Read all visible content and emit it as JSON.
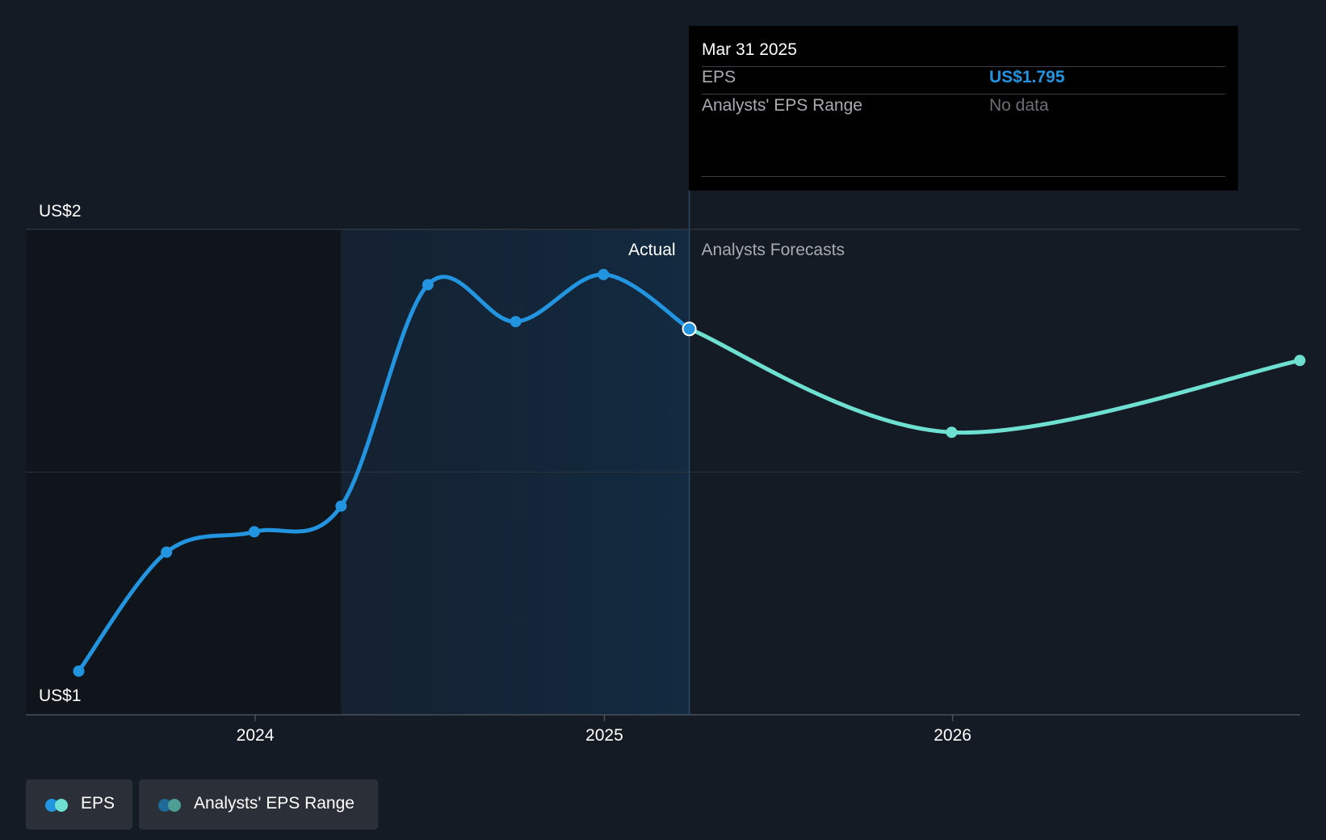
{
  "chart_data": {
    "type": "line",
    "y_labels": {
      "top": "US$2",
      "bottom": "US$1"
    },
    "ylim": [
      1,
      2
    ],
    "x_ticks": [
      "2024",
      "2025",
      "2026"
    ],
    "region_labels": {
      "actual": "Actual",
      "forecast": "Analysts Forecasts"
    },
    "series": [
      {
        "name": "EPS (actual)",
        "color": "#2394df",
        "points": [
          {
            "date": "2023-06-30",
            "value": 1.09
          },
          {
            "date": "2023-09-30",
            "value": 1.335
          },
          {
            "date": "2023-12-31",
            "value": 1.377
          },
          {
            "date": "2024-03-31",
            "value": 1.43
          },
          {
            "date": "2024-06-30",
            "value": 1.886
          },
          {
            "date": "2024-09-30",
            "value": 1.81
          },
          {
            "date": "2024-12-31",
            "value": 1.907
          },
          {
            "date": "2025-03-31",
            "value": 1.795
          }
        ]
      },
      {
        "name": "EPS (forecast)",
        "color": "#6ee0d2",
        "points": [
          {
            "date": "2025-03-31",
            "value": 1.795
          },
          {
            "date": "2025-12-31",
            "value": 1.582
          },
          {
            "date": "2026-12-31",
            "value": 1.73
          }
        ]
      }
    ]
  },
  "tooltip": {
    "date": "Mar 31 2025",
    "eps_label": "EPS",
    "eps_value": "US$1.795",
    "range_label": "Analysts' EPS Range",
    "range_value": "No data"
  },
  "legend": {
    "items": [
      {
        "label": "EPS",
        "colors": [
          "#2394df",
          "#6ee0d2"
        ]
      },
      {
        "label": "Analysts' EPS Range",
        "colors": [
          "#1f6a98",
          "#4f9e96"
        ]
      }
    ]
  },
  "colors": {
    "background": "#151b24",
    "past_region": "#11161e",
    "actual_region": "#13283c",
    "grid": "#3a4048",
    "text_muted": "#a8abb0"
  }
}
